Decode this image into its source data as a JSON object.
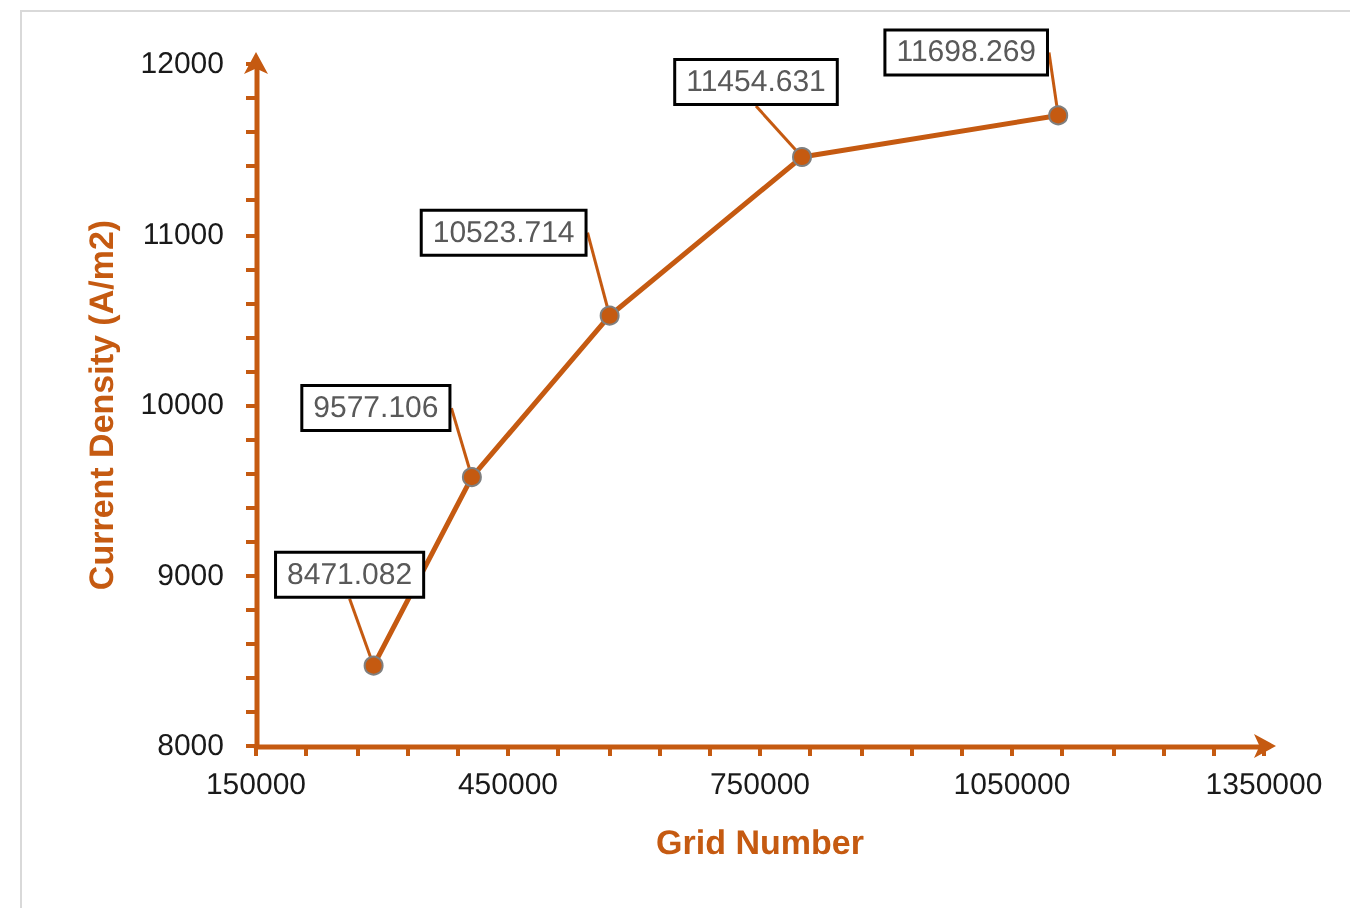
{
  "chart_data": {
    "type": "line",
    "xlabel": "Grid Number",
    "ylabel": "Current Density (A/m2)",
    "x": [
      290000,
      407000,
      571000,
      800000,
      1105000
    ],
    "values": [
      8471.082,
      9577.106,
      10523.714,
      11454.631,
      11698.269
    ],
    "color": "#c55a11",
    "xlim": [
      150000,
      1350000
    ],
    "xticks": [
      150000,
      {
        "value": 210000,
        "label": null
      },
      {
        "value": 270000,
        "label": null
      },
      {
        "value": 330000,
        "label": null
      },
      {
        "value": 390000,
        "label": null
      },
      450000,
      {
        "value": 510000,
        "label": null
      },
      {
        "value": 570000,
        "label": null
      },
      {
        "value": 630000,
        "label": null
      },
      {
        "value": 690000,
        "label": null
      },
      750000,
      {
        "value": 810000,
        "label": null
      },
      {
        "value": 870000,
        "label": null
      },
      {
        "value": 930000,
        "label": null
      },
      {
        "value": 990000,
        "label": null
      },
      1050000,
      {
        "value": 1110000,
        "label": null
      },
      {
        "value": 1170000,
        "label": null
      },
      {
        "value": 1230000,
        "label": null
      },
      {
        "value": 1290000,
        "label": null
      },
      1350000
    ],
    "ylim": [
      8000,
      12000
    ],
    "yticks": [
      8000,
      {
        "value": 8200,
        "label": null
      },
      {
        "value": 8400,
        "label": null
      },
      {
        "value": 8600,
        "label": null
      },
      {
        "value": 8800,
        "label": null
      },
      9000,
      {
        "value": 9200,
        "label": null
      },
      {
        "value": 9400,
        "label": null
      },
      {
        "value": 9600,
        "label": null
      },
      {
        "value": 9800,
        "label": null
      },
      10000,
      {
        "value": 10200,
        "label": null
      },
      {
        "value": 10400,
        "label": null
      },
      {
        "value": 10600,
        "label": null
      },
      {
        "value": 10800,
        "label": null
      },
      11000,
      {
        "value": 11200,
        "label": null
      },
      {
        "value": 11400,
        "label": null
      },
      {
        "value": 11600,
        "label": null
      },
      {
        "value": 11800,
        "label": null
      },
      12000
    ],
    "marker": "circle",
    "line_style": "solid",
    "data_labels": true
  }
}
